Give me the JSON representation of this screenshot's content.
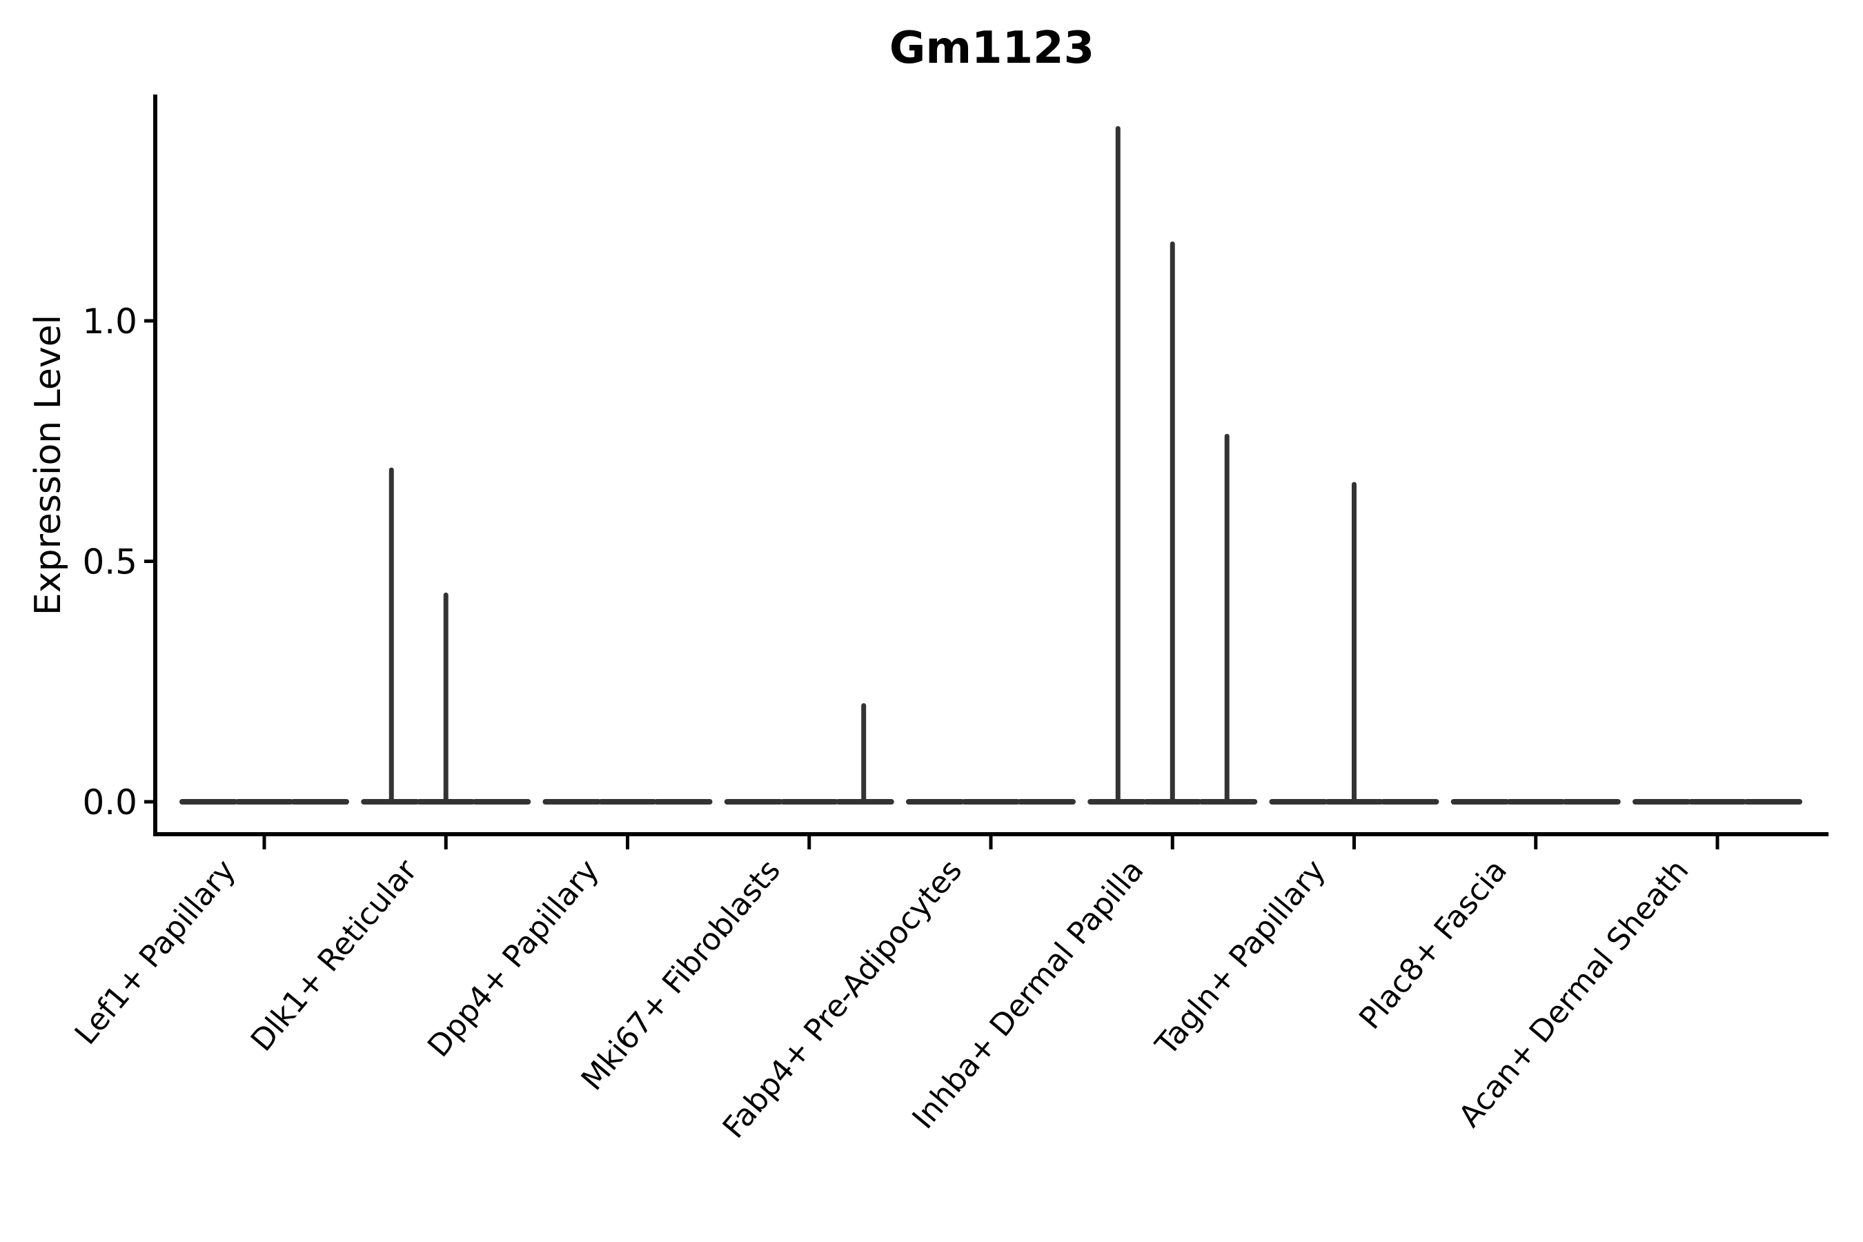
{
  "title": "Gm1123",
  "y_axis": {
    "label": "Expression Level",
    "tick_labels": [
      "0.0",
      "0.5",
      "1.0"
    ]
  },
  "x_axis": {
    "categories": [
      "Lef1+ Papillary",
      "Dlk1+ Reticular",
      "Dpp4+ Papillary",
      "Mki67+ Fibroblasts",
      "Fabp4+ Pre-Adipocytes",
      "Inhba+ Dermal Papilla",
      "Tagln+ Papillary",
      "Plac8+ Fascia",
      "Acan+ Dermal Sheath"
    ]
  },
  "chart_data": {
    "type": "violin",
    "title": "Gm1123",
    "xlabel": "",
    "ylabel": "Expression Level",
    "ylim": [
      -0.07,
      1.47
    ],
    "yticks": [
      0.0,
      0.5,
      1.0
    ],
    "ytick_labels": [
      "0.0",
      "0.5",
      "1.0"
    ],
    "grid": false,
    "legend": null,
    "categories": [
      "Lef1+ Papillary",
      "Dlk1+ Reticular",
      "Dpp4+ Papillary",
      "Mki67+ Fibroblasts",
      "Fabp4+ Pre-Adipocytes",
      "Inhba+ Dermal Papilla",
      "Tagln+ Papillary",
      "Plac8+ Fascia",
      "Acan+ Dermal Sheath"
    ],
    "series": [
      {
        "category": "Lef1+ Papillary",
        "baseline_value": 0.0,
        "spikes": []
      },
      {
        "category": "Dlk1+ Reticular",
        "baseline_value": 0.0,
        "spikes": [
          {
            "offset": -0.3,
            "value": 0.69
          },
          {
            "offset": 0.0,
            "value": 0.43
          }
        ]
      },
      {
        "category": "Dpp4+ Papillary",
        "baseline_value": 0.0,
        "spikes": []
      },
      {
        "category": "Mki67+ Fibroblasts",
        "baseline_value": 0.0,
        "spikes": [
          {
            "offset": 0.3,
            "value": 0.2
          }
        ]
      },
      {
        "category": "Fabp4+ Pre-Adipocytes",
        "baseline_value": 0.0,
        "spikes": []
      },
      {
        "category": "Inhba+ Dermal Papilla",
        "baseline_value": 0.0,
        "spikes": [
          {
            "offset": -0.3,
            "value": 1.4
          },
          {
            "offset": 0.0,
            "value": 1.16
          },
          {
            "offset": 0.3,
            "value": 0.76
          }
        ]
      },
      {
        "category": "Tagln+ Papillary",
        "baseline_value": 0.0,
        "spikes": [
          {
            "offset": 0.0,
            "value": 0.66
          }
        ]
      },
      {
        "category": "Plac8+ Fascia",
        "baseline_value": 0.0,
        "spikes": []
      },
      {
        "category": "Acan+ Dermal Sheath",
        "baseline_value": 0.0,
        "spikes": []
      }
    ],
    "colors": {
      "violin": "#333333",
      "axis": "#000000",
      "text": "#000000",
      "background": "#ffffff"
    }
  }
}
